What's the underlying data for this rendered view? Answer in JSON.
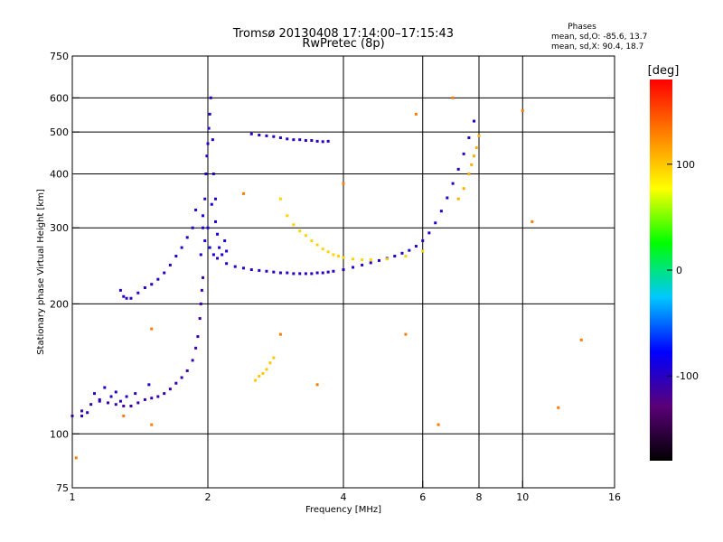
{
  "chart_data": {
    "type": "scatter",
    "title": "Tromsø 20130408 17:14:00–17:15:43",
    "subtitle": "RwPretec (8p)",
    "xlabel": "Frequency [MHz]",
    "ylabel": "Stationary phase Virtual Height [km]",
    "x_scale": "log",
    "y_scale": "log",
    "xlim": [
      1,
      16
    ],
    "ylim": [
      75,
      750
    ],
    "x_ticks": [
      1,
      2,
      4,
      6,
      8,
      10,
      16
    ],
    "x_tick_labels": [
      "1",
      "2",
      "4",
      "6",
      "8",
      "10",
      "16"
    ],
    "y_ticks": [
      75,
      100,
      200,
      300,
      400,
      500,
      600,
      750
    ],
    "y_tick_labels": [
      "75",
      "100",
      "200",
      "300",
      "400",
      "500",
      "600",
      "750"
    ],
    "x_grid_lines": [
      2,
      4,
      6,
      8,
      10
    ],
    "y_grid_lines": [
      100,
      200,
      300,
      400,
      500,
      600
    ],
    "phase_info": {
      "header": "Phases",
      "line_o": "mean, sd,O: -85.6, 13.7",
      "line_x": "mean, sd,X:  90.4, 18.7"
    },
    "colorbar": {
      "label": "[deg]",
      "range": [
        -180,
        180
      ],
      "ticks": [
        100,
        0,
        -100
      ],
      "tick_labels": [
        "100",
        "0",
        "-100"
      ],
      "stops": [
        "#000000",
        "#5a0078",
        "#0000ff",
        "#00c8ff",
        "#00ff00",
        "#ffff00",
        "#ff8000",
        "#ff0000"
      ]
    },
    "series": [
      {
        "trace": "low-trace",
        "phase": -110,
        "x": [
          1.0,
          1.05,
          1.1,
          1.15,
          1.2,
          1.25,
          1.3,
          1.35,
          1.4,
          1.45,
          1.5,
          1.55,
          1.6,
          1.65,
          1.7,
          1.75,
          1.8,
          1.85,
          1.88,
          1.9,
          1.92,
          1.93,
          1.94,
          1.95
        ],
        "y": [
          110,
          113,
          117,
          119,
          118,
          117,
          116,
          116,
          118,
          120,
          121,
          122,
          124,
          127,
          131,
          135,
          140,
          148,
          158,
          168,
          185,
          200,
          215,
          230
        ]
      },
      {
        "trace": "low-trace-scatter",
        "phase": -100,
        "x": [
          1.08,
          1.12,
          1.18,
          1.22,
          1.28,
          1.32,
          1.05,
          1.15,
          1.25,
          1.38,
          1.48
        ],
        "y": [
          112,
          124,
          128,
          122,
          119,
          122,
          110,
          120,
          125,
          124,
          130
        ]
      },
      {
        "trace": "middle-trace",
        "phase": -100,
        "x": [
          1.28,
          1.3,
          1.32,
          1.35,
          1.4,
          1.45,
          1.5,
          1.55,
          1.6,
          1.65,
          1.7,
          1.75,
          1.8,
          1.85,
          1.88
        ],
        "y": [
          215,
          208,
          206,
          206,
          212,
          218,
          222,
          228,
          236,
          246,
          258,
          270,
          285,
          300,
          330
        ]
      },
      {
        "trace": "vertical-cusp",
        "phase": -100,
        "x": [
          1.93,
          1.95,
          1.97,
          1.98,
          1.99,
          2.0,
          2.01,
          2.02,
          2.03,
          2.05,
          2.06,
          2.08
        ],
        "y": [
          260,
          300,
          350,
          400,
          440,
          470,
          510,
          550,
          600,
          480,
          400,
          350
        ]
      },
      {
        "trace": "cusp-cloud",
        "phase": -90,
        "x": [
          1.95,
          1.97,
          2.0,
          2.02,
          2.04,
          2.06,
          2.08,
          2.1,
          2.12,
          2.15,
          2.18,
          2.2
        ],
        "y": [
          320,
          280,
          300,
          270,
          340,
          260,
          310,
          290,
          270,
          260,
          280,
          265
        ]
      },
      {
        "trace": "f-layer-trace",
        "phase": -100,
        "x": [
          2.1,
          2.2,
          2.3,
          2.4,
          2.5,
          2.6,
          2.7,
          2.8,
          2.9,
          3.0,
          3.1,
          3.2,
          3.3,
          3.4,
          3.5,
          3.6,
          3.7,
          3.8,
          4.0,
          4.2,
          4.4,
          4.6,
          4.8,
          5.0,
          5.2,
          5.4,
          5.6,
          5.8,
          6.0,
          6.2,
          6.4,
          6.6,
          6.8,
          7.0,
          7.2,
          7.4,
          7.6,
          7.8
        ],
        "y": [
          255,
          248,
          244,
          242,
          240,
          239,
          238,
          237,
          236,
          236,
          235,
          235,
          235,
          235,
          236,
          236,
          237,
          238,
          240,
          243,
          246,
          249,
          252,
          255,
          258,
          262,
          266,
          272,
          280,
          292,
          308,
          328,
          352,
          380,
          410,
          445,
          485,
          530
        ]
      },
      {
        "trace": "upper-trace",
        "phase": -100,
        "x": [
          2.5,
          2.6,
          2.7,
          2.8,
          2.9,
          3.0,
          3.1,
          3.2,
          3.3,
          3.4,
          3.5,
          3.6,
          3.7
        ],
        "y": [
          495,
          492,
          490,
          488,
          485,
          482,
          480,
          480,
          478,
          478,
          476,
          475,
          476
        ]
      },
      {
        "trace": "x-mode-trace",
        "phase": 95,
        "x": [
          2.9,
          3.0,
          3.1,
          3.2,
          3.3,
          3.4,
          3.5,
          3.6,
          3.7,
          3.8,
          3.9,
          4.0,
          4.2,
          4.4,
          4.6,
          5.0,
          5.5,
          6.0
        ],
        "y": [
          350,
          320,
          305,
          295,
          288,
          280,
          274,
          268,
          264,
          260,
          258,
          256,
          254,
          253,
          253,
          254,
          258,
          265
        ]
      },
      {
        "trace": "x-mode-low",
        "phase": 100,
        "x": [
          2.55,
          2.6,
          2.65,
          2.7,
          2.75,
          2.8
        ],
        "y": [
          133,
          136,
          138,
          141,
          146,
          150
        ]
      },
      {
        "trace": "x-mode-high",
        "phase": 110,
        "x": [
          7.6,
          7.7,
          7.8,
          7.9,
          8.0,
          7.4,
          7.2
        ],
        "y": [
          400,
          420,
          440,
          460,
          490,
          370,
          350
        ]
      },
      {
        "trace": "sporadic-points",
        "phase": 130,
        "x": [
          1.02,
          1.3,
          1.5,
          2.4,
          2.9,
          3.5,
          4.0,
          5.5,
          6.5,
          7.0,
          10.0,
          10.5,
          12.0,
          13.5,
          1.5,
          5.8
        ],
        "y": [
          88,
          110,
          175,
          360,
          170,
          130,
          380,
          170,
          105,
          600,
          560,
          310,
          115,
          165,
          105,
          550
        ]
      }
    ]
  }
}
